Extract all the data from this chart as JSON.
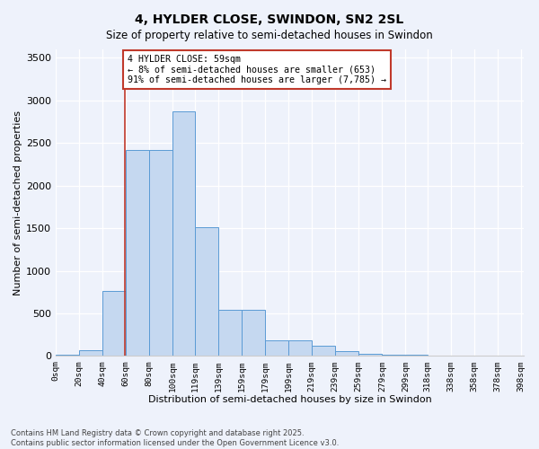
{
  "title": "4, HYLDER CLOSE, SWINDON, SN2 2SL",
  "subtitle": "Size of property relative to semi-detached houses in Swindon",
  "xlabel": "Distribution of semi-detached houses by size in Swindon",
  "ylabel": "Number of semi-detached properties",
  "bin_edges": [
    0,
    20,
    40,
    60,
    80,
    100,
    119,
    139,
    159,
    179,
    199,
    219,
    239,
    259,
    279,
    299,
    318,
    338,
    358,
    378,
    398
  ],
  "bar_heights": [
    15,
    65,
    760,
    2420,
    2420,
    2870,
    1510,
    545,
    545,
    180,
    180,
    120,
    55,
    30,
    20,
    20,
    5,
    4,
    4,
    4
  ],
  "bar_color": "#c5d8f0",
  "bar_edge_color": "#5b9bd5",
  "vline_x": 59,
  "vline_color": "#c0392b",
  "annotation_text": "4 HYLDER CLOSE: 59sqm\n← 8% of semi-detached houses are smaller (653)\n91% of semi-detached houses are larger (7,785) →",
  "ylim": [
    0,
    3600
  ],
  "xlim": [
    0,
    400
  ],
  "background_color": "#eef2fb",
  "grid_color": "#ffffff",
  "footnote": "Contains HM Land Registry data © Crown copyright and database right 2025.\nContains public sector information licensed under the Open Government Licence v3.0.",
  "tick_labels": [
    "0sqm",
    "20sqm",
    "40sqm",
    "60sqm",
    "80sqm",
    "100sqm",
    "119sqm",
    "139sqm",
    "159sqm",
    "179sqm",
    "199sqm",
    "219sqm",
    "239sqm",
    "259sqm",
    "279sqm",
    "299sqm",
    "318sqm",
    "338sqm",
    "358sqm",
    "378sqm",
    "398sqm"
  ],
  "yticks": [
    0,
    500,
    1000,
    1500,
    2000,
    2500,
    3000,
    3500
  ]
}
